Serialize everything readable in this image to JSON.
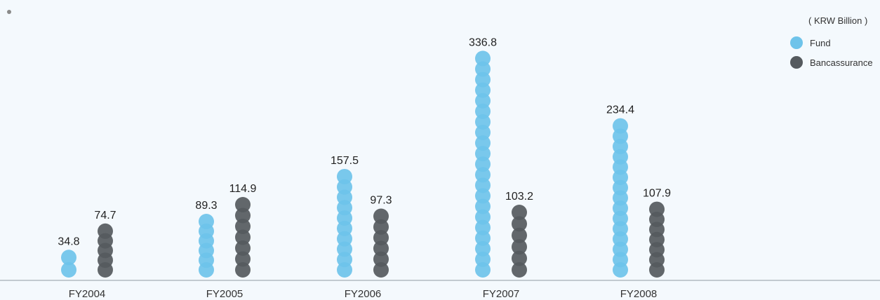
{
  "chart_data": {
    "type": "bar",
    "unit_label": "( KRW Billion )",
    "categories": [
      "FY2004",
      "FY2005",
      "FY2006",
      "FY2007",
      "FY2008"
    ],
    "series": [
      {
        "name": "Fund",
        "color": "#6ec3ea",
        "values": [
          34.8,
          89.3,
          157.5,
          336.8,
          234.4
        ],
        "labels": [
          "34.8",
          "89.3",
          "157.5",
          "336.8",
          "234.4"
        ]
      },
      {
        "name": "Bancassurance",
        "color": "#555a5e",
        "values": [
          74.7,
          114.9,
          97.3,
          103.2,
          107.9
        ],
        "labels": [
          "74.7",
          "114.9",
          "97.3",
          "103.2",
          "107.9"
        ]
      }
    ],
    "ylim": [
      0,
      350
    ]
  }
}
